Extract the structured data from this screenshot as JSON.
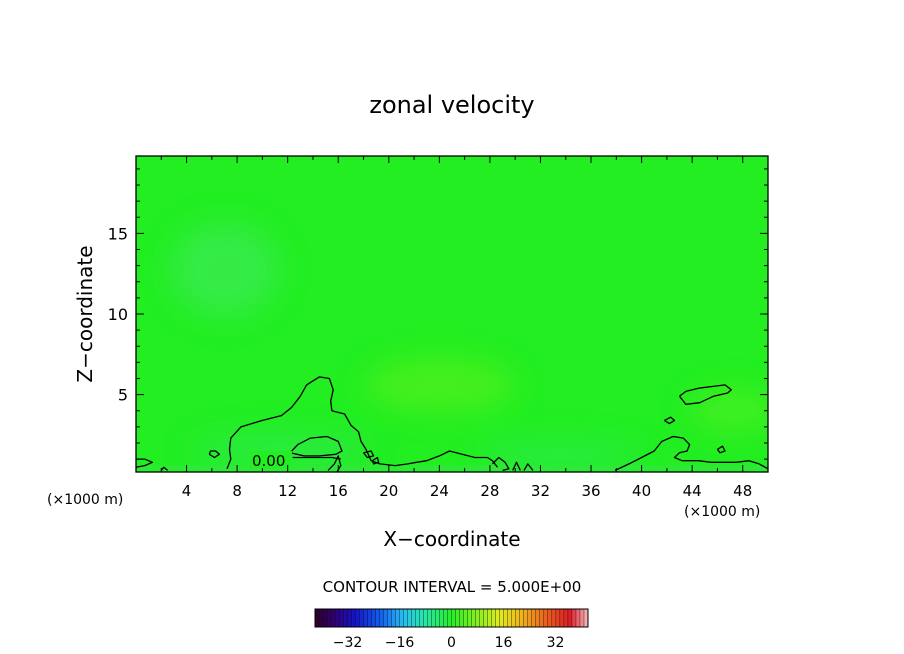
{
  "chart_data": {
    "type": "heatmap",
    "title": "zonal velocity",
    "xlabel": "X−coordinate",
    "ylabel": "Z−coordinate",
    "x_unit_left": "(×1000 m)",
    "x_unit_right": "(×1000 m)",
    "xlim": [
      0,
      50
    ],
    "ylim": [
      0.2,
      19.8
    ],
    "x_ticks": [
      4,
      8,
      12,
      16,
      20,
      24,
      28,
      32,
      36,
      40,
      44,
      48
    ],
    "x_tick_labels": [
      "4",
      "8",
      "12",
      "16",
      "20",
      "24",
      "28",
      "32",
      "36",
      "40",
      "44",
      "48"
    ],
    "y_ticks": [
      5,
      10,
      15
    ],
    "y_tick_labels": [
      "5",
      "10",
      "15"
    ],
    "contour_label": "0.00",
    "contour_interval_text": "CONTOUR INTERVAL = 5.000E+00",
    "colorbar": {
      "min": -42,
      "max": 42,
      "ticks": [
        -32,
        -16,
        0,
        16,
        32
      ],
      "tick_labels": [
        "−32",
        "−16",
        "0",
        "16",
        "32"
      ]
    },
    "field_color": "#22ee22",
    "contours": [
      [
        [
          5.8,
          1.3
        ],
        [
          6.2,
          1.1
        ],
        [
          6.6,
          1.3
        ],
        [
          6.3,
          1.5
        ],
        [
          5.9,
          1.5
        ],
        [
          5.8,
          1.3
        ]
      ],
      [
        [
          7.2,
          0.4
        ],
        [
          7.5,
          1.0
        ],
        [
          7.4,
          1.6
        ],
        [
          7.5,
          2.3
        ],
        [
          8.3,
          3.0
        ],
        [
          10.0,
          3.4
        ],
        [
          11.5,
          3.7
        ],
        [
          12.3,
          4.2
        ],
        [
          13.0,
          4.9
        ],
        [
          13.5,
          5.6
        ],
        [
          14.5,
          6.1
        ],
        [
          15.3,
          6.0
        ],
        [
          15.6,
          5.3
        ],
        [
          15.4,
          4.6
        ],
        [
          15.5,
          4.0
        ],
        [
          16.5,
          3.8
        ],
        [
          17.0,
          3.1
        ],
        [
          17.6,
          2.7
        ],
        [
          17.8,
          2.1
        ],
        [
          18.2,
          1.6
        ],
        [
          18.6,
          0.9
        ],
        [
          19.3,
          0.7
        ],
        [
          20.5,
          0.6
        ],
        [
          21.5,
          0.7
        ],
        [
          22.2,
          0.8
        ],
        [
          23.0,
          0.9
        ],
        [
          24.0,
          1.2
        ],
        [
          24.8,
          1.5
        ],
        [
          25.8,
          1.3
        ],
        [
          26.8,
          1.1
        ],
        [
          27.8,
          1.1
        ],
        [
          28.2,
          0.9
        ],
        [
          28.6,
          0.5
        ]
      ],
      [
        [
          12.2,
          1.4
        ],
        [
          12.8,
          1.9
        ],
        [
          13.8,
          2.3
        ],
        [
          15.1,
          2.4
        ],
        [
          16.0,
          2.1
        ],
        [
          16.3,
          1.5
        ],
        [
          15.8,
          1.3
        ],
        [
          14.5,
          1.2
        ],
        [
          13.3,
          1.2
        ],
        [
          12.2,
          1.4
        ]
      ],
      [
        [
          12.4,
          1.1
        ],
        [
          14.0,
          1.1
        ],
        [
          15.5,
          1.1
        ],
        [
          16.2,
          1.0
        ]
      ],
      [
        [
          15.2,
          0.3
        ],
        [
          15.7,
          0.7
        ],
        [
          16.0,
          1.2
        ],
        [
          16.2,
          0.6
        ],
        [
          15.9,
          0.2
        ]
      ],
      [
        [
          9.3,
          0.9
        ],
        [
          9.8,
          0.9
        ],
        [
          10.0,
          1.2
        ],
        [
          9.6,
          1.4
        ],
        [
          9.3,
          0.9
        ]
      ],
      [
        [
          18.0,
          1.4
        ],
        [
          18.6,
          1.5
        ],
        [
          18.8,
          1.2
        ],
        [
          18.3,
          1.1
        ],
        [
          18.0,
          1.4
        ]
      ],
      [
        [
          18.7,
          0.9
        ],
        [
          19.1,
          1.1
        ],
        [
          19.2,
          0.8
        ],
        [
          18.8,
          0.7
        ],
        [
          18.7,
          0.9
        ]
      ],
      [
        [
          28.2,
          0.7
        ],
        [
          28.7,
          1.1
        ],
        [
          29.2,
          0.8
        ],
        [
          29.5,
          0.4
        ],
        [
          29.0,
          0.3
        ]
      ],
      [
        [
          29.8,
          0.3
        ],
        [
          30.1,
          0.8
        ],
        [
          30.4,
          0.3
        ]
      ],
      [
        [
          30.7,
          0.3
        ],
        [
          31.0,
          0.7
        ],
        [
          31.4,
          0.3
        ]
      ],
      [
        [
          0.0,
          1.0
        ],
        [
          0.7,
          1.0
        ],
        [
          1.3,
          0.8
        ],
        [
          0.7,
          0.6
        ],
        [
          0.0,
          0.5
        ]
      ],
      [
        [
          2.0,
          0.3
        ],
        [
          2.2,
          0.5
        ],
        [
          2.5,
          0.3
        ]
      ],
      [
        [
          43.0,
          4.9
        ],
        [
          43.5,
          5.2
        ],
        [
          44.5,
          5.4
        ],
        [
          45.5,
          5.5
        ],
        [
          46.6,
          5.6
        ],
        [
          47.1,
          5.3
        ],
        [
          46.8,
          5.1
        ],
        [
          45.7,
          4.9
        ],
        [
          44.6,
          4.5
        ],
        [
          43.5,
          4.4
        ],
        [
          43.0,
          4.9
        ]
      ],
      [
        [
          41.8,
          3.4
        ],
        [
          42.3,
          3.6
        ],
        [
          42.6,
          3.4
        ],
        [
          42.2,
          3.2
        ],
        [
          41.8,
          3.4
        ]
      ],
      [
        [
          37.9,
          0.3
        ],
        [
          39.0,
          0.7
        ],
        [
          40.0,
          1.1
        ],
        [
          41.0,
          1.5
        ],
        [
          41.6,
          2.1
        ],
        [
          42.5,
          2.4
        ],
        [
          43.3,
          2.3
        ],
        [
          43.8,
          1.9
        ],
        [
          43.6,
          1.5
        ],
        [
          43.0,
          1.4
        ],
        [
          42.6,
          1.1
        ],
        [
          43.2,
          0.9
        ],
        [
          44.5,
          0.9
        ],
        [
          45.5,
          0.8
        ],
        [
          46.5,
          0.8
        ],
        [
          47.5,
          0.8
        ],
        [
          48.5,
          0.9
        ],
        [
          49.3,
          0.7
        ],
        [
          50.0,
          0.4
        ]
      ],
      [
        [
          46.0,
          1.6
        ],
        [
          46.4,
          1.8
        ],
        [
          46.6,
          1.5
        ],
        [
          46.2,
          1.4
        ],
        [
          46.0,
          1.6
        ]
      ]
    ]
  }
}
